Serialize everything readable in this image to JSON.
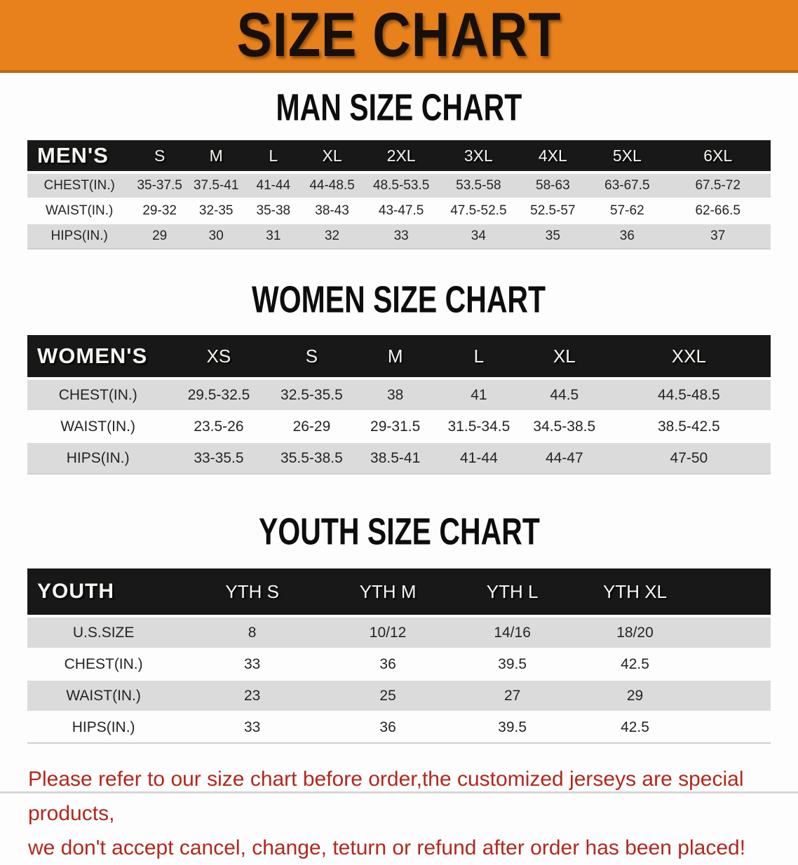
{
  "banner": {
    "title": "SIZE CHART"
  },
  "sections": [
    {
      "heading": "MAN SIZE CHART",
      "table": {
        "header": [
          "MEN'S",
          "S",
          "M",
          "L",
          "XL",
          "2XL",
          "3XL",
          "4XL",
          "5XL",
          "6XL"
        ],
        "rows": [
          {
            "label": "CHEST(IN.)",
            "values": [
              "35-37.5",
              "37.5-41",
              "41-44",
              "44-48.5",
              "48.5-53.5",
              "53.5-58",
              "58-63",
              "63-67.5",
              "67.5-72"
            ]
          },
          {
            "label": "WAIST(IN.)",
            "values": [
              "29-32",
              "32-35",
              "35-38",
              "38-43",
              "43-47.5",
              "47.5-52.5",
              "52.5-57",
              "57-62",
              "62-66.5"
            ]
          },
          {
            "label": "HIPS(IN.)",
            "values": [
              "29",
              "30",
              "31",
              "32",
              "33",
              "34",
              "35",
              "36",
              "37"
            ]
          }
        ]
      }
    },
    {
      "heading": "WOMEN SIZE CHART",
      "table": {
        "header": [
          "WOMEN'S",
          "XS",
          "S",
          "M",
          "L",
          "XL",
          "XXL"
        ],
        "rows": [
          {
            "label": "CHEST(IN.)",
            "values": [
              "29.5-32.5",
              "32.5-35.5",
              "38",
              "41",
              "44.5",
              "44.5-48.5"
            ]
          },
          {
            "label": "WAIST(IN.)",
            "values": [
              "23.5-26",
              "26-29",
              "29-31.5",
              "31.5-34.5",
              "34.5-38.5",
              "38.5-42.5"
            ]
          },
          {
            "label": "HIPS(IN.)",
            "values": [
              "33-35.5",
              "35.5-38.5",
              "38.5-41",
              "41-44",
              "44-47",
              "47-50"
            ]
          }
        ]
      }
    },
    {
      "heading": "YOUTH SIZE CHART",
      "table": {
        "header": [
          "YOUTH",
          "YTH S",
          "YTH M",
          "YTH L",
          "YTH XL"
        ],
        "rows": [
          {
            "label": "U.S.SIZE",
            "values": [
              "8",
              "10/12",
              "14/16",
              "18/20"
            ]
          },
          {
            "label": "CHEST(IN.)",
            "values": [
              "33",
              "36",
              "39.5",
              "42.5"
            ]
          },
          {
            "label": "WAIST(IN.)",
            "values": [
              "23",
              "25",
              "27",
              "29"
            ]
          },
          {
            "label": "HIPS(IN.)",
            "values": [
              "33",
              "36",
              "39.5",
              "42.5"
            ]
          }
        ]
      }
    }
  ],
  "footer": {
    "lines": [
      "Please refer to our size chart before order,the customized jerseys are special products,",
      "we don't accept cancel, change, teturn or refund after order has been placed!"
    ]
  },
  "colors": {
    "banner_orange": "#E8811B",
    "banner_edge": "#C06614",
    "header_black": "#181818",
    "row_gray": "#DBDBDB",
    "row_white": "#FDFDFD",
    "footer_red": "#B2281E"
  }
}
